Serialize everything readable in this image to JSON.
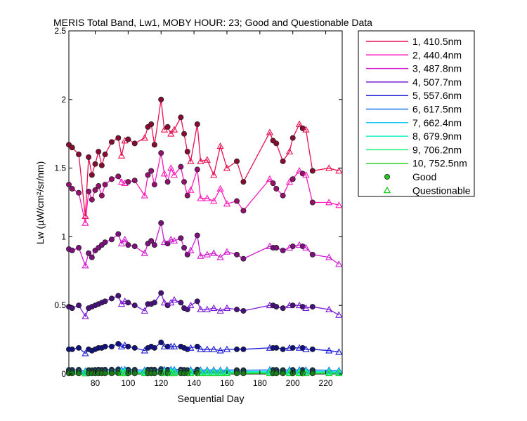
{
  "chart_data": {
    "type": "line",
    "title": "MERIS Total Band,  Lw1, MOBY HOUR: 23;  Good and Questionable Data",
    "xlabel": "Sequential Day",
    "ylabel": "Lw (µW/cm²/sr/nm)",
    "xlim": [
      64,
      230
    ],
    "ylim": [
      0,
      2.5
    ],
    "xticks": [
      "80",
      "100",
      "120",
      "140",
      "160",
      "180",
      "200",
      "220"
    ],
    "yticks": [
      "0",
      "0.5",
      "1",
      "1.5",
      "2",
      "2.5"
    ],
    "grid": false,
    "legend_position": "outside-right",
    "marker_legend": {
      "good": "Good",
      "questionable": "Questionable"
    },
    "x": [
      64,
      66,
      70,
      74,
      76,
      78,
      80,
      82,
      84,
      86,
      90,
      94,
      96,
      98,
      100,
      104,
      110,
      112,
      114,
      116,
      120,
      122,
      124,
      126,
      128,
      132,
      134,
      136,
      138,
      142,
      144,
      148,
      152,
      156,
      160,
      166,
      170,
      186,
      188,
      190,
      194,
      198,
      200,
      204,
      206,
      208,
      212,
      222,
      228
    ],
    "quality": [
      "G",
      "G",
      "G",
      "Q",
      "G",
      "G",
      "G",
      "G",
      "G",
      "G",
      "G",
      "G",
      "Q",
      "Q",
      "G",
      "G",
      "Q",
      "G",
      "G",
      "G",
      "G",
      "Q",
      "G",
      "Q",
      "Q",
      "G",
      "G",
      "G",
      "Q",
      "G",
      "Q",
      "Q",
      "Q",
      "Q",
      "Q",
      "G",
      "G",
      "Q",
      "G",
      "G",
      "G",
      "Q",
      "G",
      "Q",
      "G",
      "Q",
      "G",
      "Q",
      "Q"
    ],
    "series": [
      {
        "name": "1, 410.5nm",
        "color": "#e81050",
        "values": [
          1.67,
          1.65,
          1.6,
          1.15,
          1.58,
          1.45,
          1.53,
          1.62,
          1.52,
          1.6,
          1.69,
          1.72,
          1.59,
          1.7,
          1.71,
          1.68,
          1.72,
          1.8,
          1.82,
          1.67,
          2.0,
          1.78,
          1.8,
          1.75,
          1.78,
          1.87,
          1.75,
          1.62,
          1.55,
          1.82,
          1.55,
          1.56,
          1.45,
          1.66,
          1.5,
          1.55,
          1.4,
          1.76,
          1.7,
          1.68,
          1.55,
          1.62,
          1.72,
          1.82,
          1.79,
          1.78,
          1.48,
          1.5,
          1.48
        ]
      },
      {
        "name": "2, 440.4nm",
        "color": "#ff19bb",
        "values": [
          1.38,
          1.35,
          1.32,
          1.1,
          1.33,
          1.27,
          1.34,
          1.37,
          1.3,
          1.38,
          1.42,
          1.44,
          1.4,
          1.39,
          1.4,
          1.41,
          1.3,
          1.45,
          1.48,
          1.38,
          1.61,
          1.46,
          1.4,
          1.5,
          1.45,
          1.51,
          1.4,
          1.3,
          1.34,
          1.49,
          1.28,
          1.28,
          1.26,
          1.35,
          1.24,
          1.26,
          1.19,
          1.42,
          1.39,
          1.35,
          1.3,
          1.4,
          1.42,
          1.48,
          1.46,
          1.45,
          1.25,
          1.25,
          1.23
        ]
      },
      {
        "name": "3, 487.8nm",
        "color": "#d219d2",
        "values": [
          0.91,
          0.9,
          0.92,
          0.79,
          0.88,
          0.85,
          0.9,
          0.92,
          0.94,
          0.96,
          0.98,
          1.02,
          0.95,
          0.98,
          0.94,
          0.93,
          0.88,
          0.95,
          0.97,
          0.94,
          1.1,
          0.96,
          0.95,
          0.98,
          0.97,
          0.99,
          0.92,
          0.87,
          0.9,
          1.01,
          0.86,
          0.87,
          0.88,
          0.85,
          0.89,
          0.87,
          0.84,
          0.93,
          0.92,
          0.92,
          0.9,
          0.92,
          0.93,
          0.94,
          0.93,
          0.92,
          0.87,
          0.85,
          0.8
        ]
      },
      {
        "name": "4, 507.7nm",
        "color": "#7a1ad6",
        "values": [
          0.49,
          0.48,
          0.5,
          0.42,
          0.48,
          0.49,
          0.5,
          0.51,
          0.52,
          0.53,
          0.55,
          0.57,
          0.51,
          0.53,
          0.52,
          0.5,
          0.46,
          0.51,
          0.51,
          0.52,
          0.59,
          0.52,
          0.5,
          0.52,
          0.54,
          0.52,
          0.48,
          0.47,
          0.5,
          0.53,
          0.47,
          0.47,
          0.48,
          0.46,
          0.48,
          0.47,
          0.46,
          0.5,
          0.5,
          0.49,
          0.48,
          0.5,
          0.5,
          0.5,
          0.49,
          0.48,
          0.49,
          0.47,
          0.43
        ]
      },
      {
        "name": "5, 557.6nm",
        "color": "#1a1ad6",
        "values": [
          0.18,
          0.18,
          0.19,
          0.15,
          0.18,
          0.17,
          0.18,
          0.19,
          0.19,
          0.2,
          0.2,
          0.22,
          0.2,
          0.21,
          0.2,
          0.19,
          0.17,
          0.19,
          0.2,
          0.19,
          0.23,
          0.2,
          0.2,
          0.2,
          0.2,
          0.2,
          0.19,
          0.18,
          0.19,
          0.2,
          0.18,
          0.18,
          0.18,
          0.17,
          0.18,
          0.18,
          0.18,
          0.19,
          0.19,
          0.19,
          0.18,
          0.19,
          0.19,
          0.19,
          0.19,
          0.18,
          0.18,
          0.17,
          0.16
        ]
      },
      {
        "name": "6, 617.5nm",
        "color": "#1a78f0",
        "values": [
          0.03,
          0.03,
          0.031,
          0.022,
          0.029,
          0.028,
          0.03,
          0.031,
          0.03,
          0.031,
          0.032,
          0.034,
          0.031,
          0.033,
          0.032,
          0.031,
          0.028,
          0.031,
          0.032,
          0.031,
          0.036,
          0.032,
          0.031,
          0.032,
          0.032,
          0.032,
          0.03,
          0.029,
          0.03,
          0.032,
          0.029,
          0.029,
          0.029,
          0.028,
          0.029,
          0.029,
          0.028,
          0.03,
          0.03,
          0.03,
          0.029,
          0.03,
          0.03,
          0.03,
          0.03,
          0.029,
          0.029,
          0.028,
          0.026
        ]
      },
      {
        "name": "7, 662.4nm",
        "color": "#19c8f0",
        "values": [
          0.02,
          0.02,
          0.021,
          0.015,
          0.02,
          0.019,
          0.02,
          0.021,
          0.02,
          0.021,
          0.022,
          0.023,
          0.021,
          0.022,
          0.022,
          0.021,
          0.019,
          0.021,
          0.022,
          0.021,
          0.024,
          0.022,
          0.021,
          0.022,
          0.022,
          0.022,
          0.02,
          0.02,
          0.02,
          0.022,
          0.02,
          0.02,
          0.02,
          0.019,
          0.02,
          0.02,
          0.019,
          0.02,
          0.02,
          0.02,
          0.02,
          0.02,
          0.02,
          0.02,
          0.02,
          0.02,
          0.02,
          0.019,
          0.018
        ]
      },
      {
        "name": "8, 679.9nm",
        "color": "#19f0c8",
        "values": [
          0.017,
          0.017,
          0.018,
          0.013,
          0.017,
          0.016,
          0.017,
          0.018,
          0.017,
          0.018,
          0.019,
          0.02,
          0.018,
          0.019,
          0.019,
          0.018,
          0.016,
          0.018,
          0.019,
          0.018,
          0.021,
          0.019,
          0.018,
          0.019,
          0.019,
          0.019,
          0.017,
          0.017,
          0.017,
          0.019,
          0.017,
          0.017,
          0.017,
          0.016,
          0.017,
          0.017,
          0.016,
          0.017,
          0.017,
          0.017,
          0.017,
          0.017,
          0.017,
          0.017,
          0.017,
          0.017,
          0.017,
          0.016,
          0.015
        ]
      },
      {
        "name": "9, 706.2nm",
        "color": "#19f07a",
        "values": [
          0.01,
          0.01,
          0.011,
          0.008,
          0.01,
          0.01,
          0.01,
          0.011,
          0.01,
          0.011,
          0.011,
          0.012,
          0.011,
          0.011,
          0.011,
          0.011,
          0.01,
          0.011,
          0.011,
          0.011,
          0.013,
          0.011,
          0.011,
          0.011,
          0.011,
          0.011,
          0.01,
          0.01,
          0.01,
          0.011,
          0.01,
          0.01,
          0.01,
          0.01,
          0.01,
          0.01,
          0.01,
          0.01,
          0.01,
          0.01,
          0.01,
          0.01,
          0.01,
          0.01,
          0.01,
          0.01,
          0.01,
          0.01,
          0.009
        ]
      },
      {
        "name": "10, 752.5nm",
        "color": "#2ad22a",
        "values": [
          0.004,
          0.004,
          0.004,
          0.003,
          0.004,
          0.004,
          0.004,
          0.004,
          0.004,
          0.004,
          0.004,
          0.005,
          0.004,
          0.004,
          0.004,
          0.004,
          0.004,
          0.004,
          0.004,
          0.004,
          0.005,
          0.004,
          0.004,
          0.004,
          0.004,
          0.004,
          0.004,
          0.004,
          0.004,
          0.004,
          0.004,
          0.004,
          0.004,
          0.004,
          0.004,
          0.004,
          0.004,
          0.004,
          0.004,
          0.004,
          0.004,
          0.004,
          0.004,
          0.004,
          0.004,
          0.004,
          0.004,
          0.004,
          0.004
        ]
      }
    ],
    "marker_colors": {
      "good_fill": "#22c822",
      "questionable_stroke": "#22c822"
    }
  }
}
